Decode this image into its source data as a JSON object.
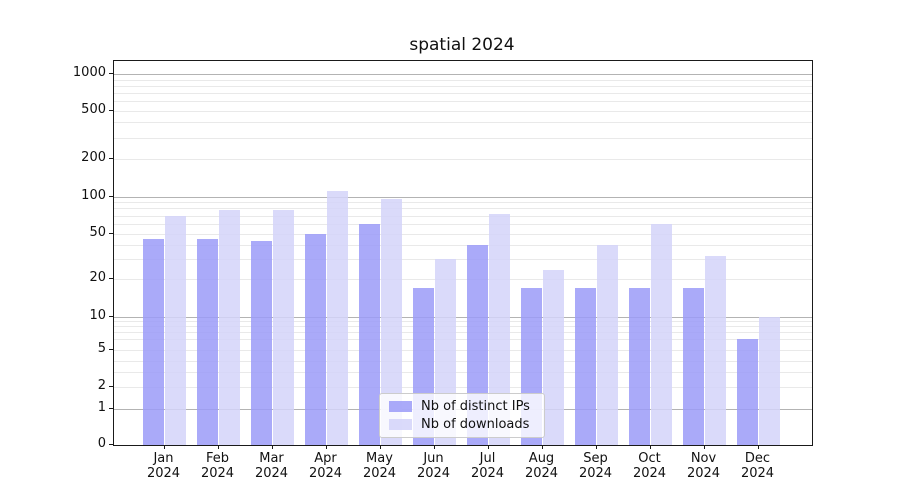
{
  "chart_data": {
    "type": "bar",
    "title": "spatial 2024",
    "categories": [
      "Jan 2024",
      "Feb 2024",
      "Mar 2024",
      "Apr 2024",
      "May 2024",
      "Jun 2024",
      "Jul 2024",
      "Aug 2024",
      "Sep 2024",
      "Oct 2024",
      "Nov 2024",
      "Dec 2024"
    ],
    "series": [
      {
        "name": "Nb of distinct IPs",
        "color": "#9b9bf8",
        "values": [
          45,
          45,
          43,
          50,
          60,
          17,
          40,
          17,
          17,
          17,
          17,
          6
        ]
      },
      {
        "name": "Nb of downloads",
        "color": "#d4d4f9",
        "values": [
          70,
          78,
          78,
          110,
          95,
          30,
          72,
          24,
          40,
          60,
          32,
          10
        ]
      }
    ],
    "yscale": "log-with-zero",
    "yticks": [
      0,
      1,
      2,
      5,
      10,
      20,
      50,
      100,
      200,
      500,
      1000
    ],
    "ylim": [
      0,
      1280
    ],
    "grid": {
      "orientation": "horizontal",
      "major_color": "#b3b3b3",
      "minor_color": "#e9e9e9"
    },
    "legend_position": "lower-center-inside"
  }
}
